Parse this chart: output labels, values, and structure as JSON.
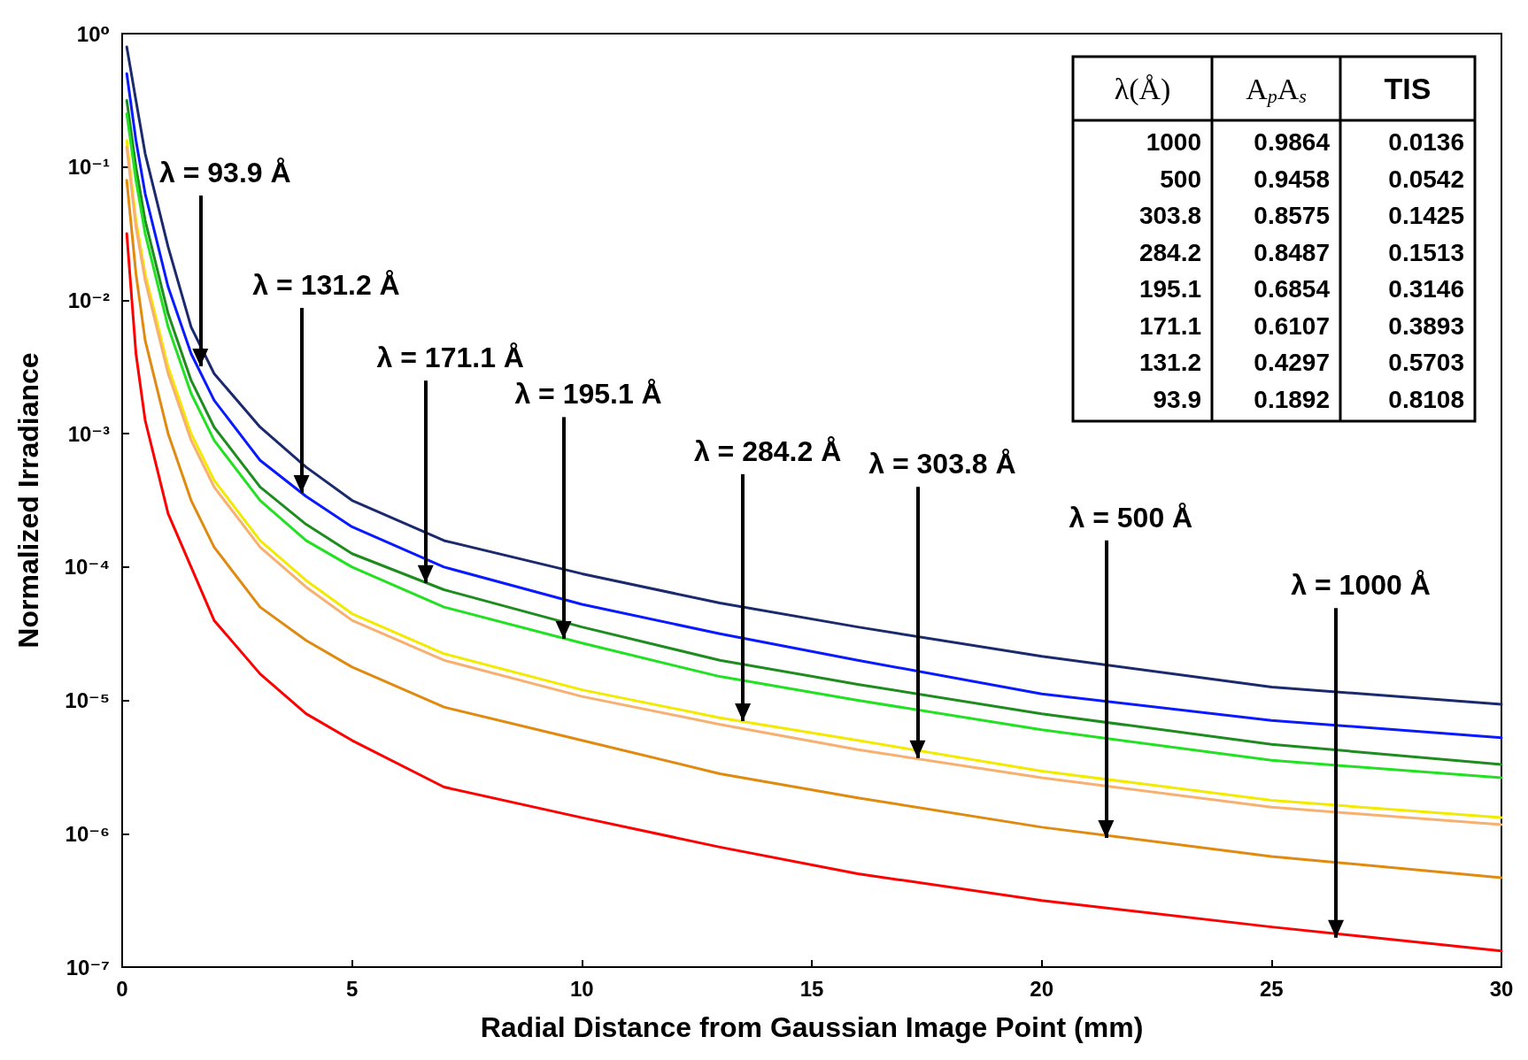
{
  "chart_data": {
    "type": "line",
    "xlabel": "Radial Distance from Gaussian Image Point (mm)",
    "ylabel": "Normalized Irradiance",
    "log": "y",
    "marker": "none",
    "line_style": "solid",
    "xlim": [
      0,
      30
    ],
    "xticks": [
      0,
      5,
      10,
      15,
      20,
      25,
      30
    ],
    "ylim": [
      1e-07,
      1
    ],
    "yticks": [
      {
        "value": 1e-07,
        "label": "10⁻⁷"
      },
      {
        "value": 1e-06,
        "label": "10⁻⁶"
      },
      {
        "value": 1e-05,
        "label": "10⁻⁵"
      },
      {
        "value": 0.0001,
        "label": "10⁻⁴"
      },
      {
        "value": 0.001,
        "label": "10⁻³"
      },
      {
        "value": 0.01,
        "label": "10⁻²"
      },
      {
        "value": 0.1,
        "label": "10⁻¹"
      },
      {
        "value": 1,
        "label": "10⁰"
      }
    ],
    "x": [
      0.1,
      0.3,
      0.5,
      1,
      1.5,
      2,
      3,
      4,
      5,
      7,
      10,
      13,
      16,
      20,
      25,
      30
    ],
    "series": [
      {
        "color": "#1a2a6c",
        "values": [
          0.794,
          0.316,
          0.126,
          0.0251,
          0.00631,
          0.00282,
          0.00112,
          0.000562,
          0.000316,
          0.000158,
          8.91e-05,
          5.37e-05,
          3.55e-05,
          2.14e-05,
          1.26e-05,
          9.33e-06
        ]
      },
      {
        "color": "#0a1aff",
        "values": [
          0.501,
          0.158,
          0.0631,
          0.0126,
          0.00398,
          0.00178,
          0.000631,
          0.000339,
          0.0002,
          0.0001,
          5.25e-05,
          3.16e-05,
          2e-05,
          1.12e-05,
          7.08e-06,
          5.25e-06
        ]
      },
      {
        "color": "#1e8c1e",
        "values": [
          0.316,
          0.1,
          0.0398,
          0.00794,
          0.00251,
          0.00112,
          0.000398,
          0.000209,
          0.000126,
          6.76e-05,
          3.55e-05,
          2e-05,
          1.32e-05,
          7.94e-06,
          4.68e-06,
          3.31e-06
        ]
      },
      {
        "color": "#22e022",
        "values": [
          0.251,
          0.0794,
          0.0316,
          0.00631,
          0.002,
          0.000891,
          0.000316,
          0.000158,
          0.0001,
          5.01e-05,
          2.69e-05,
          1.51e-05,
          1e-05,
          6.03e-06,
          3.55e-06,
          2.63e-06
        ]
      },
      {
        "color": "#f2ea00",
        "values": [
          0.158,
          0.0398,
          0.0158,
          0.00316,
          0.001,
          0.000447,
          0.000158,
          7.94e-05,
          4.47e-05,
          2.24e-05,
          1.2e-05,
          7.41e-06,
          5.01e-06,
          2.95e-06,
          1.78e-06,
          1.32e-06
        ]
      },
      {
        "color": "#f7b070",
        "values": [
          0.141,
          0.0355,
          0.0141,
          0.00282,
          0.000891,
          0.000398,
          0.000141,
          7.08e-05,
          3.98e-05,
          2e-05,
          1.07e-05,
          6.61e-06,
          4.27e-06,
          2.63e-06,
          1.58e-06,
          1.17e-06
        ]
      },
      {
        "color": "#e08a10",
        "values": [
          0.0794,
          0.0158,
          0.00501,
          0.001,
          0.000316,
          0.000141,
          5.01e-05,
          2.82e-05,
          1.78e-05,
          8.91e-06,
          5.01e-06,
          2.82e-06,
          1.86e-06,
          1.12e-06,
          6.76e-07,
          4.68e-07
        ]
      },
      {
        "color": "#ff0000",
        "values": [
          0.0316,
          0.00398,
          0.00126,
          0.000251,
          0.0001,
          3.98e-05,
          1.58e-05,
          7.94e-06,
          5.01e-06,
          2.24e-06,
          1.32e-06,
          7.94e-07,
          5.01e-07,
          3.16e-07,
          2e-07,
          1.32e-07
        ]
      }
    ],
    "annotations": [
      {
        "text": "λ = 93.9 Å",
        "x": 1.7,
        "y": 0.0032
      },
      {
        "text": "λ = 131.2 Å",
        "x": 3.9,
        "y": 0.00036
      },
      {
        "text": "λ = 171.1 Å",
        "x": 6.6,
        "y": 7.6e-05
      },
      {
        "text": "λ = 195.1 Å",
        "x": 9.6,
        "y": 2.9e-05
      },
      {
        "text": "λ = 284.2 Å",
        "x": 13.5,
        "y": 7e-06
      },
      {
        "text": "λ = 303.8 Å",
        "x": 17.3,
        "y": 3.7e-06
      },
      {
        "text": "λ = 500 Å",
        "x": 21.4,
        "y": 9.3e-07
      },
      {
        "text": "λ = 1000 Å",
        "x": 26.4,
        "y": 1.66e-07
      },
      "λ(Å)",
      "A$_{p}$A$_{s}$",
      "TIS",
      "1000",
      "0.9864",
      "0.0136",
      "500",
      "0.9458",
      "0.0542",
      "303.8",
      "0.8575",
      "0.1425",
      "284.2",
      "0.8487",
      "0.1513",
      "195.1",
      "0.6854",
      "0.3146",
      "171.1",
      "0.6107",
      "0.3893",
      "131.2",
      "0.4297",
      "0.5703",
      "93.9",
      "0.1892",
      "0.8108"
    ]
  }
}
